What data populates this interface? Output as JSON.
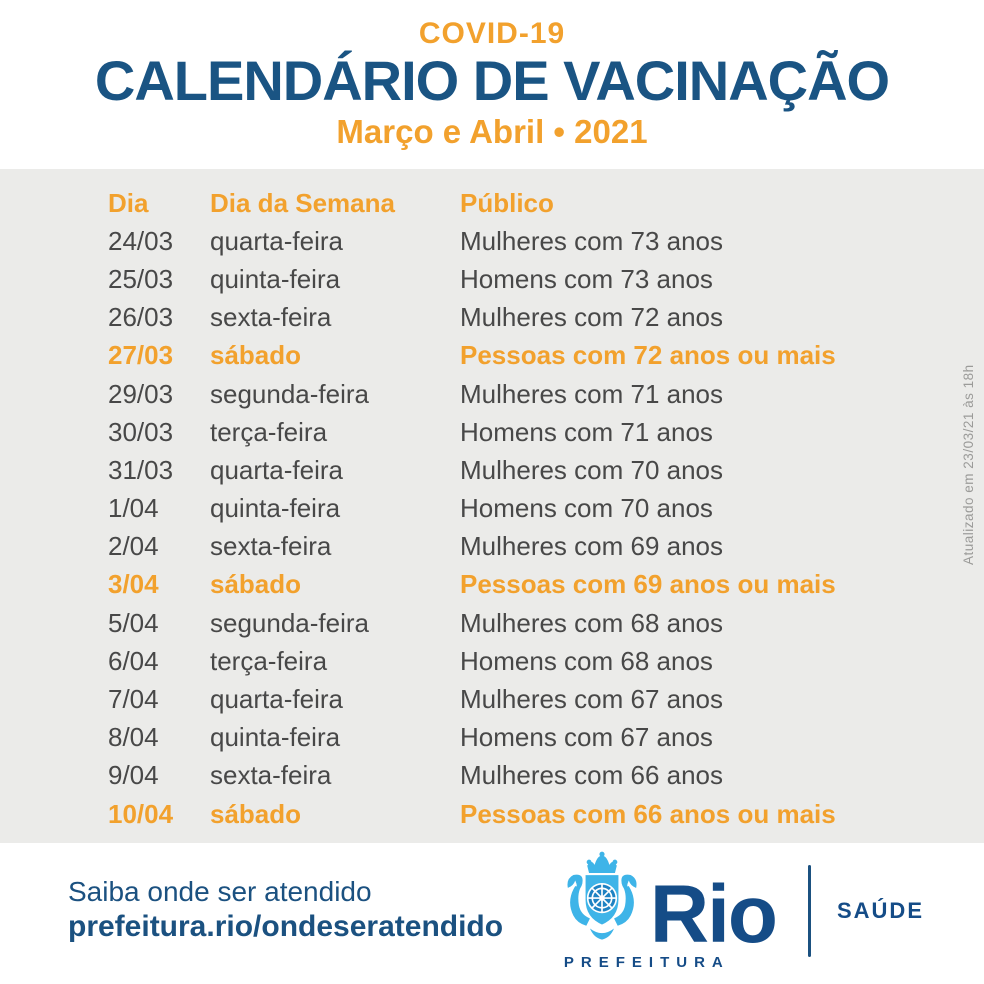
{
  "header": {
    "kicker": "COVID-19",
    "title": "CALENDÁRIO DE VACINAÇÃO",
    "subtitle": "Março e Abril • 2021"
  },
  "table": {
    "columns": [
      "Dia",
      "Dia da Semana",
      "Público"
    ],
    "rows": [
      {
        "dia": "24/03",
        "semana": "quarta-feira",
        "publico": "Mulheres com 73 anos",
        "highlight": false
      },
      {
        "dia": "25/03",
        "semana": "quinta-feira",
        "publico": "Homens com 73 anos",
        "highlight": false
      },
      {
        "dia": "26/03",
        "semana": "sexta-feira",
        "publico": "Mulheres com 72 anos",
        "highlight": false
      },
      {
        "dia": "27/03",
        "semana": "sábado",
        "publico": "Pessoas com 72 anos ou mais",
        "highlight": true
      },
      {
        "dia": "29/03",
        "semana": "segunda-feira",
        "publico": "Mulheres com 71 anos",
        "highlight": false
      },
      {
        "dia": "30/03",
        "semana": "terça-feira",
        "publico": "Homens com 71 anos",
        "highlight": false
      },
      {
        "dia": "31/03",
        "semana": "quarta-feira",
        "publico": "Mulheres com 70 anos",
        "highlight": false
      },
      {
        "dia": "1/04",
        "semana": "quinta-feira",
        "publico": "Homens com 70 anos",
        "highlight": false
      },
      {
        "dia": "2/04",
        "semana": "sexta-feira",
        "publico": "Mulheres com 69 anos",
        "highlight": false
      },
      {
        "dia": "3/04",
        "semana": "sábado",
        "publico": "Pessoas com 69 anos ou mais",
        "highlight": true
      },
      {
        "dia": "5/04",
        "semana": "segunda-feira",
        "publico": "Mulheres com 68 anos",
        "highlight": false
      },
      {
        "dia": "6/04",
        "semana": "terça-feira",
        "publico": "Homens com 68 anos",
        "highlight": false
      },
      {
        "dia": "7/04",
        "semana": "quarta-feira",
        "publico": "Mulheres com 67 anos",
        "highlight": false
      },
      {
        "dia": "8/04",
        "semana": "quinta-feira",
        "publico": "Homens com 67 anos",
        "highlight": false
      },
      {
        "dia": "9/04",
        "semana": "sexta-feira",
        "publico": "Mulheres com 66 anos",
        "highlight": false
      },
      {
        "dia": "10/04",
        "semana": "sábado",
        "publico": "Pessoas com 66 anos ou mais",
        "highlight": true
      }
    ]
  },
  "updated_note": "Atualizado em 23/03/21 às 18h",
  "footer": {
    "line1": "Saiba onde ser atendido",
    "line2": "prefeitura.rio/ondeseratendido",
    "logo": {
      "wordmark": "Rio",
      "sub": "PREFEITURA",
      "department": "SAÚDE",
      "crest_icon": "rio-coat-of-arms-icon"
    }
  },
  "colors": {
    "orange": "#F2A12D",
    "title_blue": "#1A5483",
    "footer_blue": "#1B5180",
    "logo_blue": "#154C87",
    "light_blue": "#3EB4E8",
    "wheel_blue": "#1E82C2",
    "gray_bg": "#EBEBE9",
    "row_text": "#484848",
    "note_gray": "#9B9B99"
  }
}
